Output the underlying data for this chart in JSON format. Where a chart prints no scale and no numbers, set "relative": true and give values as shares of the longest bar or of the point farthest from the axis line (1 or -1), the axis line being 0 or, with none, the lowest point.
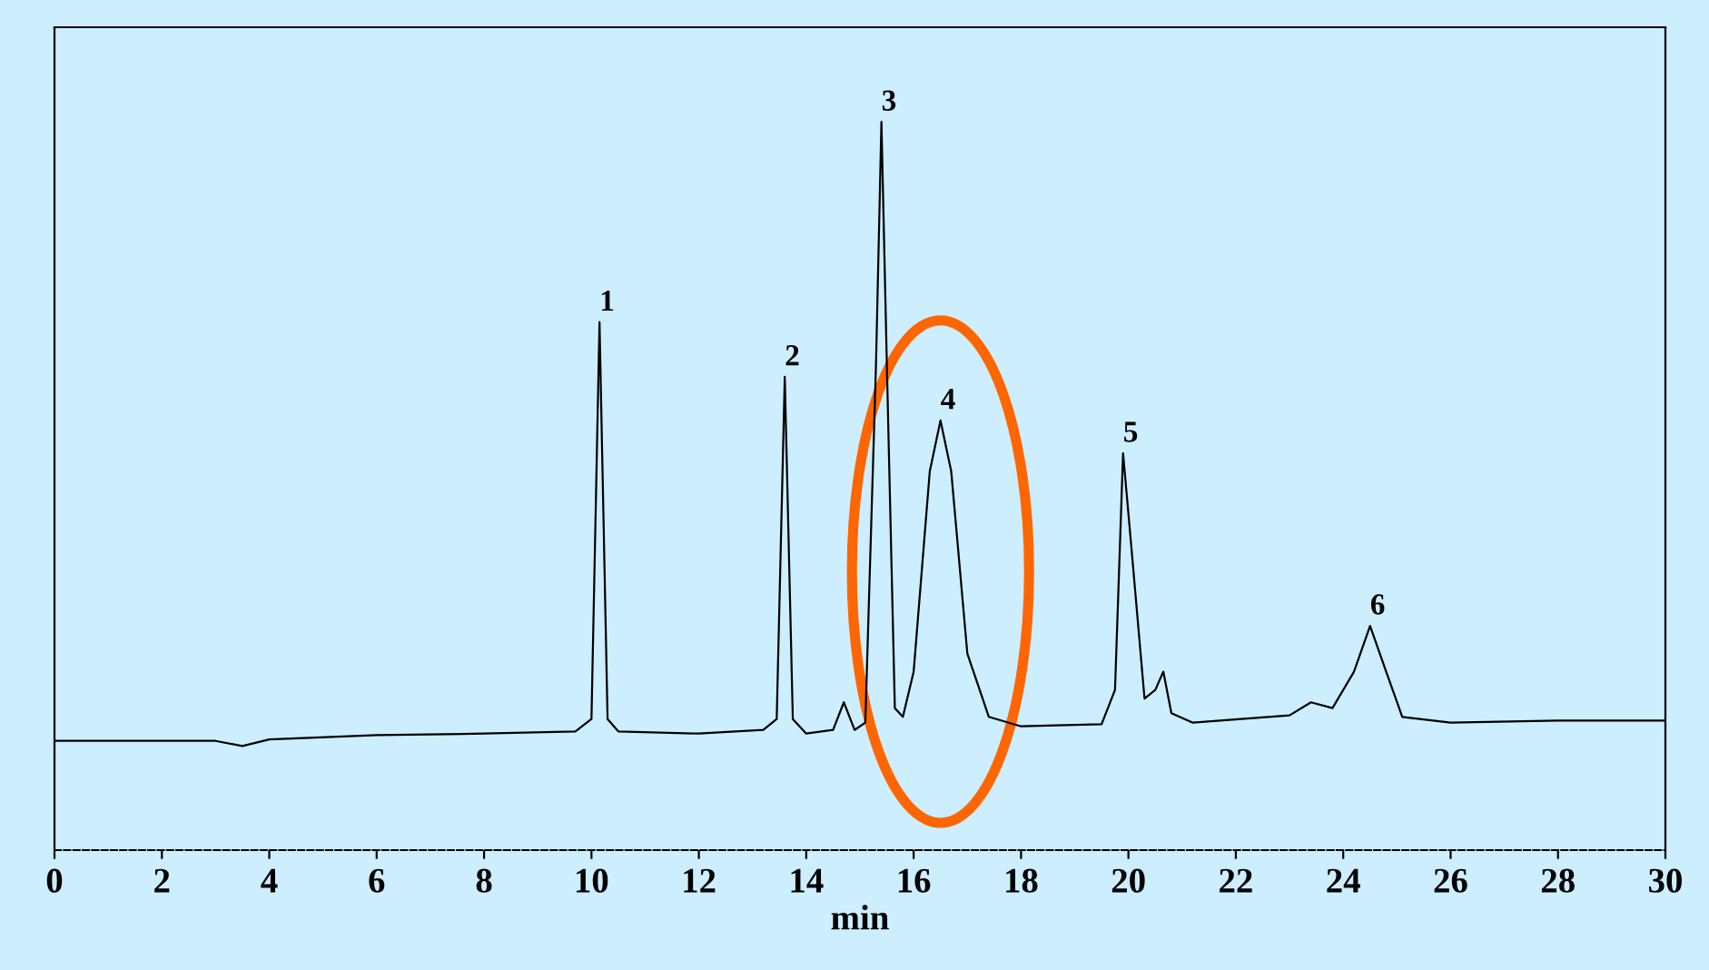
{
  "chart_data": {
    "type": "line",
    "relative": true,
    "xlabel": "min",
    "color": "#000000",
    "xlim": [
      0,
      30
    ],
    "xticks": [
      0,
      2,
      4,
      6,
      8,
      10,
      12,
      14,
      16,
      18,
      20,
      22,
      24,
      26,
      28,
      30
    ],
    "tick_labels": "x",
    "grid": false,
    "legend": false,
    "marker": "none",
    "line_style": "solid",
    "x": [
      0,
      3.0,
      3.5,
      4,
      6,
      8,
      9.7,
      10.0,
      10.15,
      10.3,
      10.5,
      12,
      13.2,
      13.45,
      13.6,
      13.75,
      14.0,
      14.5,
      14.7,
      14.9,
      15.1,
      15.3,
      15.4,
      15.5,
      15.65,
      15.8,
      16.0,
      16.3,
      16.5,
      16.7,
      17.0,
      17.4,
      18.0,
      19.5,
      19.75,
      19.9,
      20.05,
      20.3,
      20.5,
      20.65,
      20.8,
      21.2,
      23,
      23.4,
      23.8,
      24.2,
      24.5,
      24.8,
      25.1,
      26,
      28,
      30
    ],
    "values": [
      0.15,
      0.15,
      0.143,
      0.152,
      0.158,
      0.16,
      0.163,
      0.18,
      0.725,
      0.18,
      0.163,
      0.16,
      0.165,
      0.18,
      0.65,
      0.18,
      0.16,
      0.165,
      0.203,
      0.165,
      0.175,
      0.67,
      1.0,
      0.67,
      0.195,
      0.183,
      0.245,
      0.52,
      0.59,
      0.52,
      0.27,
      0.183,
      0.17,
      0.173,
      0.22,
      0.545,
      0.42,
      0.208,
      0.22,
      0.245,
      0.188,
      0.175,
      0.185,
      0.203,
      0.195,
      0.245,
      0.308,
      0.245,
      0.183,
      0.175,
      0.178,
      0.178
    ],
    "annotations": [
      {
        "text": "1",
        "x": 10.15,
        "y": 0.725
      },
      {
        "text": "2",
        "x": 13.6,
        "y": 0.65
      },
      {
        "text": "3",
        "x": 15.4,
        "y": 1.0
      },
      {
        "text": "4",
        "x": 16.5,
        "y": 0.59
      },
      {
        "text": "5",
        "x": 19.9,
        "y": 0.545
      },
      {
        "text": "6",
        "x": 24.5,
        "y": 0.308
      }
    ]
  }
}
